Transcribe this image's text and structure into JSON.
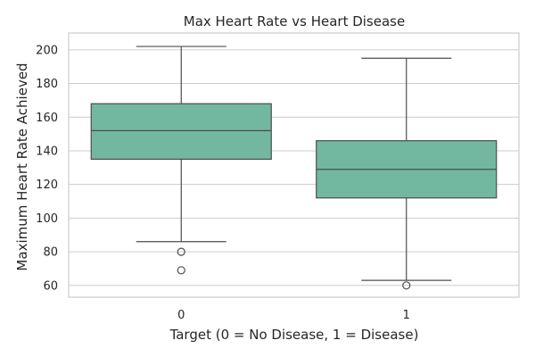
{
  "chart_data": {
    "type": "box",
    "title": "Max Heart Rate vs Heart Disease",
    "xlabel": "Target (0 = No Disease, 1 = Disease)",
    "ylabel": "Maximum Heart Rate Achieved",
    "categories": [
      "0",
      "1"
    ],
    "ylim": [
      53,
      210
    ],
    "yticks": [
      60,
      80,
      100,
      120,
      140,
      160,
      180,
      200
    ],
    "grid": true,
    "box_color": "#72b8a0",
    "line_color": "#4d4d4d",
    "grid_color": "#cccccc",
    "boxes": [
      {
        "category": "0",
        "whisker_low": 86,
        "q1": 135,
        "median": 152,
        "q3": 168,
        "whisker_high": 202,
        "outliers": [
          80,
          69
        ]
      },
      {
        "category": "1",
        "whisker_low": 63,
        "q1": 112,
        "median": 129,
        "q3": 146,
        "whisker_high": 195,
        "outliers": [
          60
        ]
      }
    ]
  }
}
